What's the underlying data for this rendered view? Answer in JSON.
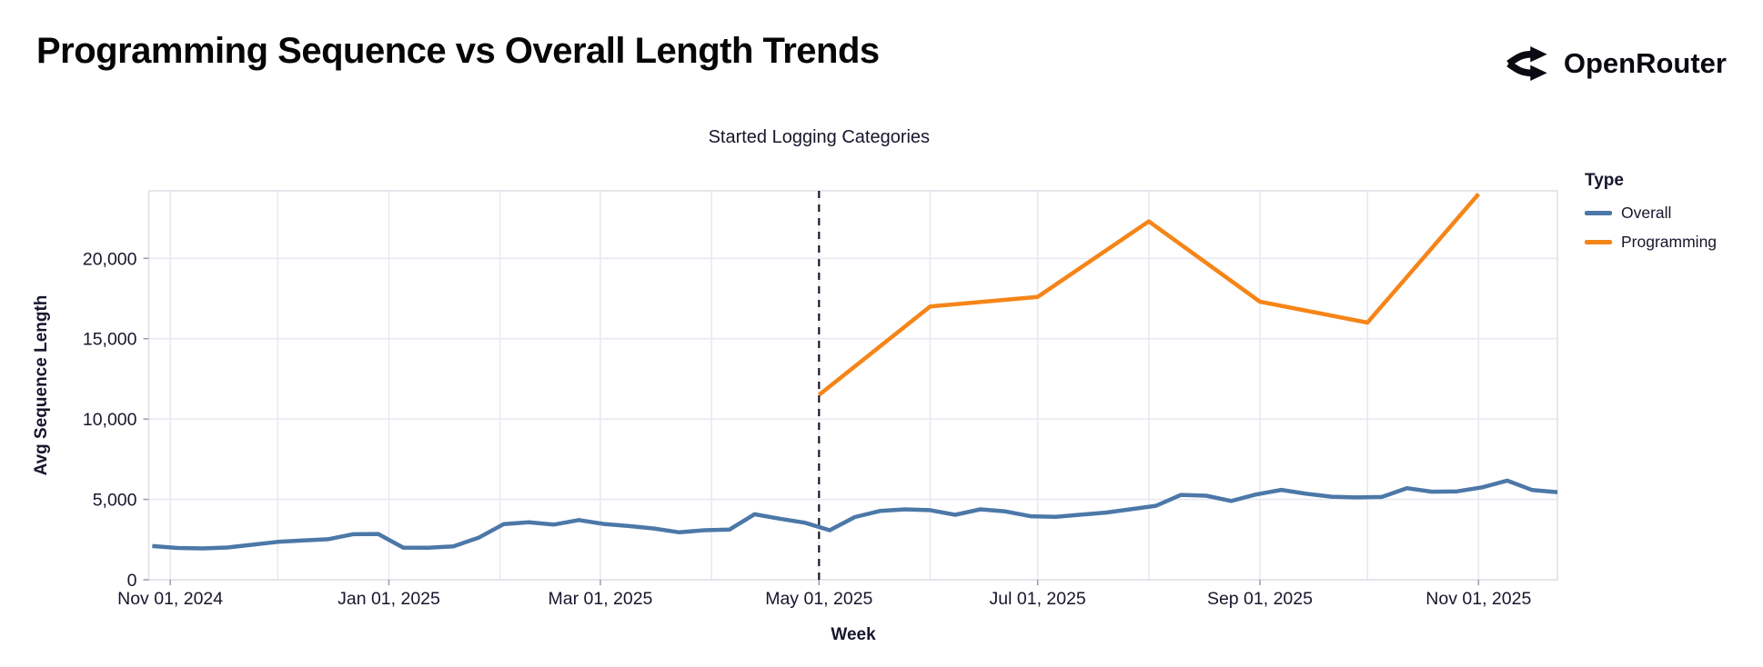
{
  "header": {
    "title": "Programming Sequence vs Overall Length Trends",
    "brand": "OpenRouter"
  },
  "chart_data": {
    "type": "line",
    "xlabel": "Week",
    "ylabel": "Avg Sequence Length",
    "xlim": [
      "2024-10-26",
      "2025-11-23"
    ],
    "ylim": [
      0,
      24200
    ],
    "grid": "on",
    "legend_position": "right",
    "legend": {
      "title": "Type",
      "entries": [
        {
          "label": "Overall",
          "color": "#4c78a8"
        },
        {
          "label": "Programming",
          "color": "#f58518"
        }
      ]
    },
    "annotation": {
      "label": "Started Logging Categories",
      "x": "2025-05-01",
      "style": "dashed-vertical-line",
      "color": "#17172b"
    },
    "x_ticks": [
      {
        "label": "Nov 01, 2024",
        "date": "2024-11-01"
      },
      {
        "label": "Jan 01, 2025",
        "date": "2025-01-01"
      },
      {
        "label": "Mar 01, 2025",
        "date": "2025-03-01"
      },
      {
        "label": "May 01, 2025",
        "date": "2025-05-01"
      },
      {
        "label": "Jul 01, 2025",
        "date": "2025-07-01"
      },
      {
        "label": "Sep 01, 2025",
        "date": "2025-09-01"
      },
      {
        "label": "Nov 01, 2025",
        "date": "2025-11-01"
      }
    ],
    "y_ticks": [
      {
        "label": "0",
        "value": 0
      },
      {
        "label": "5,000",
        "value": 5000
      },
      {
        "label": "10,000",
        "value": 10000
      },
      {
        "label": "15,000",
        "value": 15000
      },
      {
        "label": "20,000",
        "value": 20000
      }
    ],
    "series": [
      {
        "name": "Overall",
        "color": "#4c78a8",
        "points": [
          [
            "2024-10-27",
            2100
          ],
          [
            "2024-11-03",
            1980
          ],
          [
            "2024-11-10",
            1950
          ],
          [
            "2024-11-17",
            2010
          ],
          [
            "2024-11-24",
            2180
          ],
          [
            "2024-12-01",
            2360
          ],
          [
            "2024-12-08",
            2450
          ],
          [
            "2024-12-15",
            2520
          ],
          [
            "2024-12-22",
            2830
          ],
          [
            "2024-12-29",
            2850
          ],
          [
            "2025-01-05",
            2000
          ],
          [
            "2025-01-12",
            1990
          ],
          [
            "2025-01-19",
            2080
          ],
          [
            "2025-01-26",
            2610
          ],
          [
            "2025-02-02",
            3460
          ],
          [
            "2025-02-09",
            3580
          ],
          [
            "2025-02-16",
            3430
          ],
          [
            "2025-02-23",
            3715
          ],
          [
            "2025-03-02",
            3470
          ],
          [
            "2025-03-09",
            3340
          ],
          [
            "2025-03-16",
            3190
          ],
          [
            "2025-03-23",
            2950
          ],
          [
            "2025-03-30",
            3080
          ],
          [
            "2025-04-06",
            3120
          ],
          [
            "2025-04-13",
            4075
          ],
          [
            "2025-04-20",
            3800
          ],
          [
            "2025-04-27",
            3550
          ],
          [
            "2025-05-04",
            3080
          ],
          [
            "2025-05-11",
            3900
          ],
          [
            "2025-05-18",
            4280
          ],
          [
            "2025-05-25",
            4380
          ],
          [
            "2025-06-01",
            4330
          ],
          [
            "2025-06-08",
            4040
          ],
          [
            "2025-06-15",
            4380
          ],
          [
            "2025-06-22",
            4250
          ],
          [
            "2025-06-29",
            3950
          ],
          [
            "2025-07-06",
            3920
          ],
          [
            "2025-07-13",
            4050
          ],
          [
            "2025-07-20",
            4180
          ],
          [
            "2025-07-27",
            4390
          ],
          [
            "2025-08-03",
            4600
          ],
          [
            "2025-08-10",
            5280
          ],
          [
            "2025-08-17",
            5230
          ],
          [
            "2025-08-24",
            4900
          ],
          [
            "2025-08-31",
            5310
          ],
          [
            "2025-09-07",
            5590
          ],
          [
            "2025-09-14",
            5350
          ],
          [
            "2025-09-21",
            5170
          ],
          [
            "2025-09-28",
            5120
          ],
          [
            "2025-10-05",
            5150
          ],
          [
            "2025-10-12",
            5700
          ],
          [
            "2025-10-19",
            5480
          ],
          [
            "2025-10-26",
            5500
          ],
          [
            "2025-11-02",
            5750
          ],
          [
            "2025-11-09",
            6170
          ],
          [
            "2025-11-16",
            5580
          ],
          [
            "2025-11-23",
            5450
          ]
        ]
      },
      {
        "name": "Programming",
        "color": "#f58518",
        "points": [
          [
            "2025-05-01",
            11500
          ],
          [
            "2025-06-01",
            17000
          ],
          [
            "2025-07-01",
            17600
          ],
          [
            "2025-08-01",
            22300
          ],
          [
            "2025-09-01",
            17300
          ],
          [
            "2025-10-01",
            16000
          ],
          [
            "2025-11-01",
            24000
          ]
        ]
      }
    ]
  }
}
